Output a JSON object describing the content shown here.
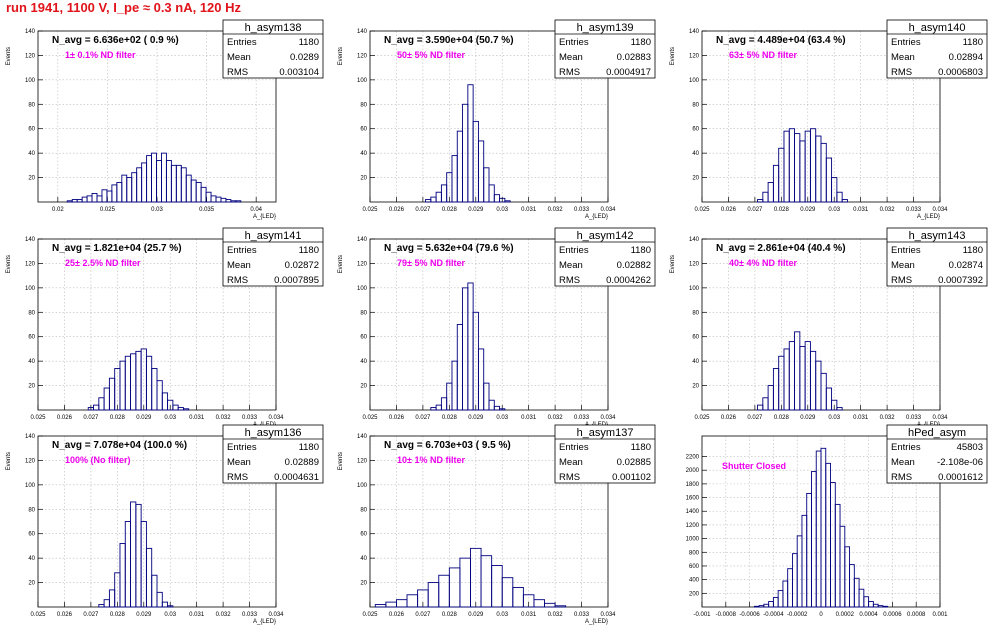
{
  "page": {
    "title": "run 1941,  1100 V, I_pe ≈ 0.3 nA, 120 Hz",
    "title_color": "#e0141a"
  },
  "style": {
    "hist_color": "#00007f",
    "annotation_color": "#ee00ee",
    "grid_color": "#bbbbbb",
    "frame_color": "#000000"
  },
  "chart_data": [
    {
      "type": "bar",
      "name": "h_asym138",
      "ylabel": "Events",
      "xlabel": "A_{LED}",
      "xlim": [
        0.018,
        0.042
      ],
      "ylim": [
        0,
        140
      ],
      "xticks": [
        "0.02",
        "0.025",
        "0.03",
        "0.035",
        "0.04"
      ],
      "yticks": [
        "20",
        "40",
        "60",
        "80",
        "100",
        "120",
        "140"
      ],
      "stats": {
        "entries": "1180",
        "mean": "0.0289",
        "rms": "0.003104"
      },
      "navg": "N_avg = 6.636e+02 ( 0.9 %)",
      "filter": "1± 0.1% ND filter",
      "grid": true,
      "x_centers": [
        0.0212,
        0.0217,
        0.0222,
        0.0227,
        0.0232,
        0.0237,
        0.0242,
        0.0247,
        0.0252,
        0.0257,
        0.0262,
        0.0267,
        0.0272,
        0.0277,
        0.0282,
        0.0287,
        0.0292,
        0.0297,
        0.0302,
        0.0307,
        0.0312,
        0.0317,
        0.0322,
        0.0327,
        0.0332,
        0.0337,
        0.0342,
        0.0347,
        0.0352,
        0.0357,
        0.0362,
        0.0367,
        0.0372,
        0.0377,
        0.0382
      ],
      "values": [
        1,
        2,
        2,
        4,
        5,
        7,
        5,
        10,
        9,
        14,
        16,
        22,
        20,
        24,
        28,
        32,
        38,
        40,
        34,
        40,
        34,
        30,
        30,
        28,
        22,
        18,
        16,
        12,
        8,
        5,
        4,
        3,
        2,
        1,
        1
      ]
    },
    {
      "type": "bar",
      "name": "h_asym139",
      "ylabel": "Events",
      "xlabel": "A_{LED}",
      "xlim": [
        0.025,
        0.034
      ],
      "ylim": [
        0,
        140
      ],
      "xticks": [
        "0.025",
        "0.026",
        "0.027",
        "0.028",
        "0.029",
        "0.03",
        "0.031",
        "0.032",
        "0.033",
        "0.034"
      ],
      "yticks": [
        "20",
        "40",
        "60",
        "80",
        "100",
        "120",
        "140"
      ],
      "stats": {
        "entries": "1180",
        "mean": "0.02883",
        "rms": "0.0004917"
      },
      "navg": "N_avg = 3.590e+04 (50.7 %)",
      "filter": "50± 5% ND filter",
      "grid": true,
      "x_centers": [
        0.0272,
        0.0274,
        0.0276,
        0.0278,
        0.028,
        0.0282,
        0.0284,
        0.0286,
        0.0288,
        0.029,
        0.0292,
        0.0294,
        0.0296,
        0.0298,
        0.03,
        0.0302
      ],
      "values": [
        2,
        4,
        8,
        14,
        24,
        38,
        58,
        80,
        96,
        66,
        50,
        28,
        14,
        6,
        3,
        1
      ]
    },
    {
      "type": "bar",
      "name": "h_asym140",
      "ylabel": "Events",
      "xlabel": "A_{LED}",
      "xlim": [
        0.025,
        0.034
      ],
      "ylim": [
        0,
        140
      ],
      "xticks": [
        "0.025",
        "0.026",
        "0.027",
        "0.028",
        "0.029",
        "0.03",
        "0.031",
        "0.032",
        "0.033",
        "0.034"
      ],
      "yticks": [
        "20",
        "40",
        "60",
        "80",
        "100",
        "120",
        "140"
      ],
      "stats": {
        "entries": "1180",
        "mean": "0.02894",
        "rms": "0.0006803"
      },
      "navg": "N_avg = 4.489e+04 (63.4 %)",
      "filter": "63± 5% ND filter",
      "grid": true,
      "x_centers": [
        0.0272,
        0.0274,
        0.0276,
        0.0278,
        0.028,
        0.0282,
        0.0284,
        0.0286,
        0.0288,
        0.029,
        0.0292,
        0.0294,
        0.0296,
        0.0298,
        0.03,
        0.0302,
        0.0304
      ],
      "values": [
        2,
        8,
        16,
        30,
        44,
        58,
        60,
        56,
        50,
        58,
        60,
        54,
        48,
        36,
        20,
        8,
        2
      ]
    },
    {
      "type": "bar",
      "name": "h_asym141",
      "ylabel": "Events",
      "xlabel": "A_{LED}",
      "xlim": [
        0.025,
        0.034
      ],
      "ylim": [
        0,
        140
      ],
      "xticks": [
        "0.025",
        "0.026",
        "0.027",
        "0.028",
        "0.029",
        "0.03",
        "0.031",
        "0.032",
        "0.033",
        "0.034"
      ],
      "yticks": [
        "20",
        "40",
        "60",
        "80",
        "100",
        "120",
        "140"
      ],
      "stats": {
        "entries": "1180",
        "mean": "0.02872",
        "rms": "0.0007895"
      },
      "navg": "N_avg = 1.821e+04 (25.7 %)",
      "filter": "25± 2.5% ND filter",
      "grid": true,
      "x_centers": [
        0.027,
        0.0272,
        0.0274,
        0.0276,
        0.0278,
        0.028,
        0.0282,
        0.0284,
        0.0286,
        0.0288,
        0.029,
        0.0292,
        0.0294,
        0.0296,
        0.0298,
        0.03,
        0.0302,
        0.0304,
        0.0306
      ],
      "values": [
        2,
        4,
        10,
        18,
        26,
        34,
        40,
        44,
        46,
        48,
        50,
        44,
        34,
        24,
        14,
        8,
        4,
        2,
        1
      ]
    },
    {
      "type": "bar",
      "name": "h_asym142",
      "ylabel": "Events",
      "xlabel": "A_{LED}",
      "xlim": [
        0.025,
        0.034
      ],
      "ylim": [
        0,
        140
      ],
      "xticks": [
        "0.025",
        "0.026",
        "0.027",
        "0.028",
        "0.029",
        "0.03",
        "0.031",
        "0.032",
        "0.033",
        "0.034"
      ],
      "yticks": [
        "20",
        "40",
        "60",
        "80",
        "100",
        "120",
        "140"
      ],
      "stats": {
        "entries": "1180",
        "mean": "0.02882",
        "rms": "0.0004262"
      },
      "navg": "N_avg = 5.632e+04 (79.6 %)",
      "filter": "79± 5% ND filter",
      "grid": true,
      "x_centers": [
        0.0274,
        0.0276,
        0.0278,
        0.028,
        0.0282,
        0.0284,
        0.0286,
        0.0288,
        0.029,
        0.0292,
        0.0294,
        0.0296,
        0.0298,
        0.03
      ],
      "values": [
        2,
        4,
        10,
        22,
        40,
        70,
        100,
        104,
        80,
        50,
        22,
        8,
        3,
        1
      ]
    },
    {
      "type": "bar",
      "name": "h_asym143",
      "ylabel": "Events",
      "xlabel": "A_{LED}",
      "xlim": [
        0.025,
        0.034
      ],
      "ylim": [
        0,
        140
      ],
      "xticks": [
        "0.025",
        "0.026",
        "0.027",
        "0.028",
        "0.029",
        "0.03",
        "0.031",
        "0.032",
        "0.033",
        "0.034"
      ],
      "yticks": [
        "20",
        "40",
        "60",
        "80",
        "100",
        "120",
        "140"
      ],
      "stats": {
        "entries": "1180",
        "mean": "0.02874",
        "rms": "0.0007392"
      },
      "navg": "N_avg = 2.861e+04 (40.4 %)",
      "filter": "40± 4% ND filter",
      "grid": true,
      "x_centers": [
        0.0272,
        0.0274,
        0.0276,
        0.0278,
        0.028,
        0.0282,
        0.0284,
        0.0286,
        0.0288,
        0.029,
        0.0292,
        0.0294,
        0.0296,
        0.0298,
        0.03,
        0.0302
      ],
      "values": [
        4,
        10,
        20,
        34,
        44,
        50,
        56,
        64,
        52,
        56,
        48,
        40,
        30,
        18,
        8,
        2
      ]
    },
    {
      "type": "bar",
      "name": "h_asym136",
      "ylabel": "Events",
      "xlabel": "A_{LED}",
      "xlim": [
        0.025,
        0.034
      ],
      "ylim": [
        0,
        140
      ],
      "xticks": [
        "0.025",
        "0.026",
        "0.027",
        "0.028",
        "0.029",
        "0.03",
        "0.031",
        "0.032",
        "0.033",
        "0.034"
      ],
      "yticks": [
        "20",
        "40",
        "60",
        "80",
        "100",
        "120",
        "140"
      ],
      "stats": {
        "entries": "1180",
        "mean": "0.02889",
        "rms": "0.0004631"
      },
      "navg": "N_avg = 7.078e+04 (100.0 %)",
      "filter": "100% (No filter)",
      "grid": true,
      "x_centers": [
        0.0274,
        0.0276,
        0.0278,
        0.028,
        0.0282,
        0.0284,
        0.0286,
        0.0288,
        0.029,
        0.0292,
        0.0294,
        0.0296,
        0.0298,
        0.03
      ],
      "values": [
        2,
        6,
        14,
        28,
        52,
        70,
        86,
        84,
        70,
        48,
        26,
        12,
        4,
        1
      ]
    },
    {
      "type": "bar",
      "name": "h_asym137",
      "ylabel": "Events",
      "xlabel": "A_{LED}",
      "xlim": [
        0.025,
        0.034
      ],
      "ylim": [
        0,
        140
      ],
      "xticks": [
        "0.025",
        "0.026",
        "0.027",
        "0.028",
        "0.029",
        "0.03",
        "0.031",
        "0.032",
        "0.033",
        "0.034"
      ],
      "yticks": [
        "20",
        "40",
        "60",
        "80",
        "100",
        "120",
        "140"
      ],
      "stats": {
        "entries": "1180",
        "mean": "0.02885",
        "rms": "0.001102"
      },
      "navg": "N_avg = 6.703e+03 ( 9.5 %)",
      "filter": "10± 1% ND filter",
      "grid": true,
      "x_centers": [
        0.0254,
        0.0258,
        0.0262,
        0.0266,
        0.027,
        0.0274,
        0.0278,
        0.0282,
        0.0286,
        0.029,
        0.0294,
        0.0298,
        0.0302,
        0.0306,
        0.031,
        0.0314,
        0.0318,
        0.0322
      ],
      "values": [
        2,
        4,
        6,
        10,
        14,
        20,
        26,
        32,
        40,
        48,
        42,
        34,
        24,
        16,
        10,
        6,
        3,
        1
      ]
    },
    {
      "type": "bar",
      "name": "hPed_asym",
      "ylabel": "",
      "xlabel": "",
      "xlim": [
        -0.001,
        0.001
      ],
      "ylim": [
        0,
        2500
      ],
      "xticks": [
        "-0.001",
        "-0.0008",
        "-0.0006",
        "-0.0004",
        "-0.0002",
        "0",
        "0.0002",
        "0.0004",
        "0.0006",
        "0.0008",
        "0.001"
      ],
      "yticks": [
        "200",
        "400",
        "600",
        "800",
        "1000",
        "1200",
        "1400",
        "1600",
        "1800",
        "2000",
        "2200"
      ],
      "stats": {
        "entries": "45803",
        "mean": "-2.108e-06",
        "rms": "0.0001612"
      },
      "navg": "",
      "filter": "Shutter Closed",
      "grid": true,
      "x_centers": [
        -0.00054,
        -0.0005,
        -0.00046,
        -0.00042,
        -0.00038,
        -0.00034,
        -0.0003,
        -0.00026,
        -0.00022,
        -0.00018,
        -0.00014,
        -0.0001,
        -6e-05,
        -2e-05,
        2e-05,
        6e-05,
        0.0001,
        0.00014,
        0.00018,
        0.00022,
        0.00026,
        0.0003,
        0.00034,
        0.00038,
        0.00042,
        0.00046,
        0.0005,
        0.00054
      ],
      "values": [
        10,
        20,
        40,
        80,
        140,
        240,
        380,
        560,
        780,
        1040,
        1340,
        1660,
        1980,
        2280,
        2320,
        2100,
        1820,
        1500,
        1180,
        880,
        620,
        420,
        260,
        150,
        80,
        40,
        20,
        10
      ]
    }
  ]
}
